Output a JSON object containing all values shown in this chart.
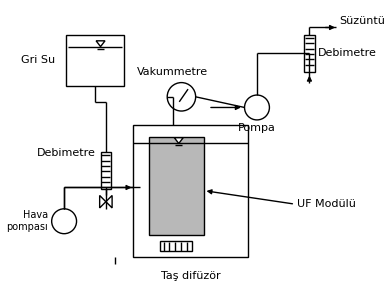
{
  "background_color": "#ffffff",
  "line_color": "#000000",
  "gray_fill": "#b8b8b8",
  "labels": {
    "gri_su": "Gri Su",
    "vakummetre": "Vakummetre",
    "pompa": "Pompa",
    "debimetre_left": "Debimetre",
    "debimetre_right": "Debimetre",
    "hava_pompasi": "Hava\npompası",
    "uf_modulu": "UF Modülü",
    "tas_difuzor": "Taş difüzör",
    "suzuntu": "Süzüntü"
  },
  "figsize": [
    3.87,
    3.0
  ],
  "dpi": 100
}
